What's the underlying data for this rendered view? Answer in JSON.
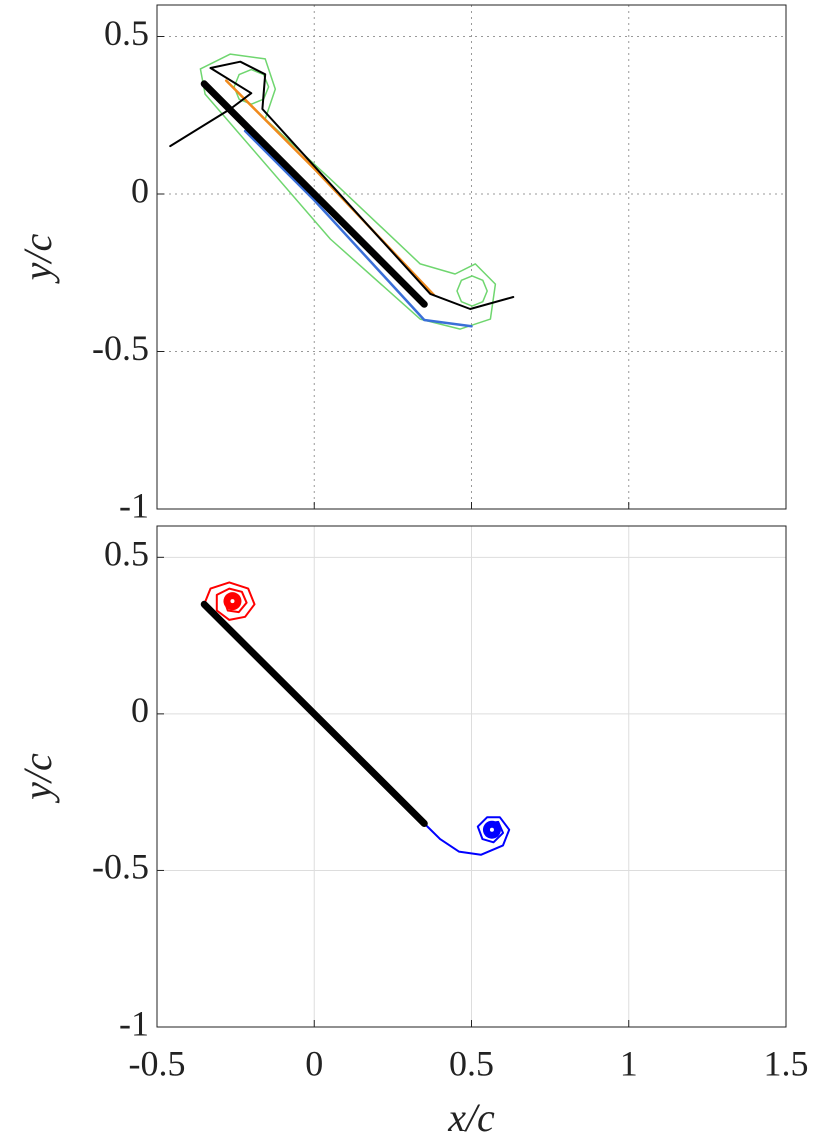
{
  "chart_data": [
    {
      "type": "line",
      "ylabel": "y/c",
      "xlim": [
        -0.5,
        1.5
      ],
      "ylim": [
        -1,
        0.6
      ],
      "xticks": [
        -0.5,
        0,
        0.5,
        1,
        1.5
      ],
      "yticks": [
        -1,
        -0.5,
        0,
        0.5
      ],
      "show_xtick_labels": false,
      "grid": true,
      "grid_style": "dotted",
      "series": [
        {
          "color": "#6fd66f",
          "width": 1.5,
          "x": [
            -0.362,
            -0.267,
            -0.156,
            -0.124,
            -0.156,
            0.051,
            0.337,
            0.448,
            0.512,
            0.576,
            0.56,
            0.464,
            0.337,
            0.051,
            -0.251,
            -0.347,
            -0.362
          ],
          "y": [
            0.397,
            0.444,
            0.429,
            0.333,
            0.238,
            0.048,
            -0.222,
            -0.254,
            -0.222,
            -0.286,
            -0.397,
            -0.429,
            -0.397,
            -0.143,
            0.206,
            0.317,
            0.397
          ]
        },
        {
          "color": "#6fd66f",
          "width": 1.5,
          "x": [
            -0.145,
            -0.161,
            -0.2,
            -0.239,
            -0.255,
            -0.239,
            -0.2,
            -0.161,
            -0.145
          ],
          "y": [
            0.34,
            0.379,
            0.395,
            0.379,
            0.34,
            0.301,
            0.285,
            0.301,
            0.34
          ]
        },
        {
          "color": "#6fd66f",
          "width": 1.5,
          "x": [
            0.55,
            0.536,
            0.502,
            0.468,
            0.454,
            0.468,
            0.502,
            0.536,
            0.55
          ],
          "y": [
            -0.308,
            -0.274,
            -0.26,
            -0.274,
            -0.308,
            -0.342,
            -0.356,
            -0.342,
            -0.308
          ]
        },
        {
          "color": "#f08a1c",
          "width": 2.5,
          "x": [
            -0.28,
            0.0,
            0.38
          ],
          "y": [
            0.36,
            0.08,
            -0.32
          ]
        },
        {
          "color": "#3a6fd8",
          "width": 2.5,
          "x": [
            -0.22,
            0.0,
            0.35,
            0.5
          ],
          "y": [
            0.2,
            -0.02,
            -0.4,
            -0.42
          ]
        },
        {
          "color": "#000000",
          "width": 2,
          "x": [
            -0.458,
            -0.267,
            -0.2,
            -0.33,
            -0.235,
            -0.156,
            -0.165,
            0.369,
            0.496,
            0.633
          ],
          "y": [
            0.152,
            0.27,
            0.32,
            0.4,
            0.42,
            0.38,
            0.27,
            -0.317,
            -0.365,
            -0.327
          ]
        },
        {
          "color": "#000000",
          "width": 7,
          "x": [
            -0.35,
            0.35
          ],
          "y": [
            0.35,
            -0.35
          ]
        }
      ]
    },
    {
      "type": "line",
      "ylabel": "y/c",
      "xlabel": "x/c",
      "xlim": [
        -0.5,
        1.5
      ],
      "ylim": [
        -1,
        0.6
      ],
      "xticks": [
        -0.5,
        0,
        0.5,
        1,
        1.5
      ],
      "yticks": [
        -1,
        -0.5,
        0,
        0.5
      ],
      "show_xtick_labels": true,
      "grid": true,
      "grid_style": "solid",
      "series": [
        {
          "color": "#ff0000",
          "width": 2,
          "x": [
            -0.35,
            -0.33,
            -0.27,
            -0.21,
            -0.19,
            -0.22,
            -0.27,
            -0.31,
            -0.31,
            -0.27,
            -0.23,
            -0.215,
            -0.24,
            -0.275,
            -0.285,
            -0.265,
            -0.24
          ],
          "y": [
            0.35,
            0.4,
            0.42,
            0.4,
            0.35,
            0.31,
            0.3,
            0.33,
            0.38,
            0.4,
            0.39,
            0.355,
            0.325,
            0.33,
            0.36,
            0.38,
            0.37
          ]
        },
        {
          "color": "#0000ff",
          "width": 2,
          "x": [
            0.35,
            0.4,
            0.46,
            0.53,
            0.6,
            0.62,
            0.59,
            0.55,
            0.52,
            0.535,
            0.57,
            0.6,
            0.585,
            0.555,
            0.545,
            0.56
          ],
          "y": [
            -0.35,
            -0.4,
            -0.44,
            -0.45,
            -0.42,
            -0.37,
            -0.33,
            -0.33,
            -0.36,
            -0.4,
            -0.41,
            -0.38,
            -0.345,
            -0.35,
            -0.37,
            -0.39
          ]
        },
        {
          "color": "#000000",
          "width": 7,
          "x": [
            -0.35,
            0.35
          ],
          "y": [
            0.35,
            -0.35
          ]
        },
        {
          "color": "#ff0000",
          "marker": true,
          "x": [
            -0.26
          ],
          "y": [
            0.36
          ]
        },
        {
          "color": "#0000ff",
          "marker": true,
          "x": [
            0.565
          ],
          "y": [
            -0.37
          ]
        }
      ]
    }
  ]
}
